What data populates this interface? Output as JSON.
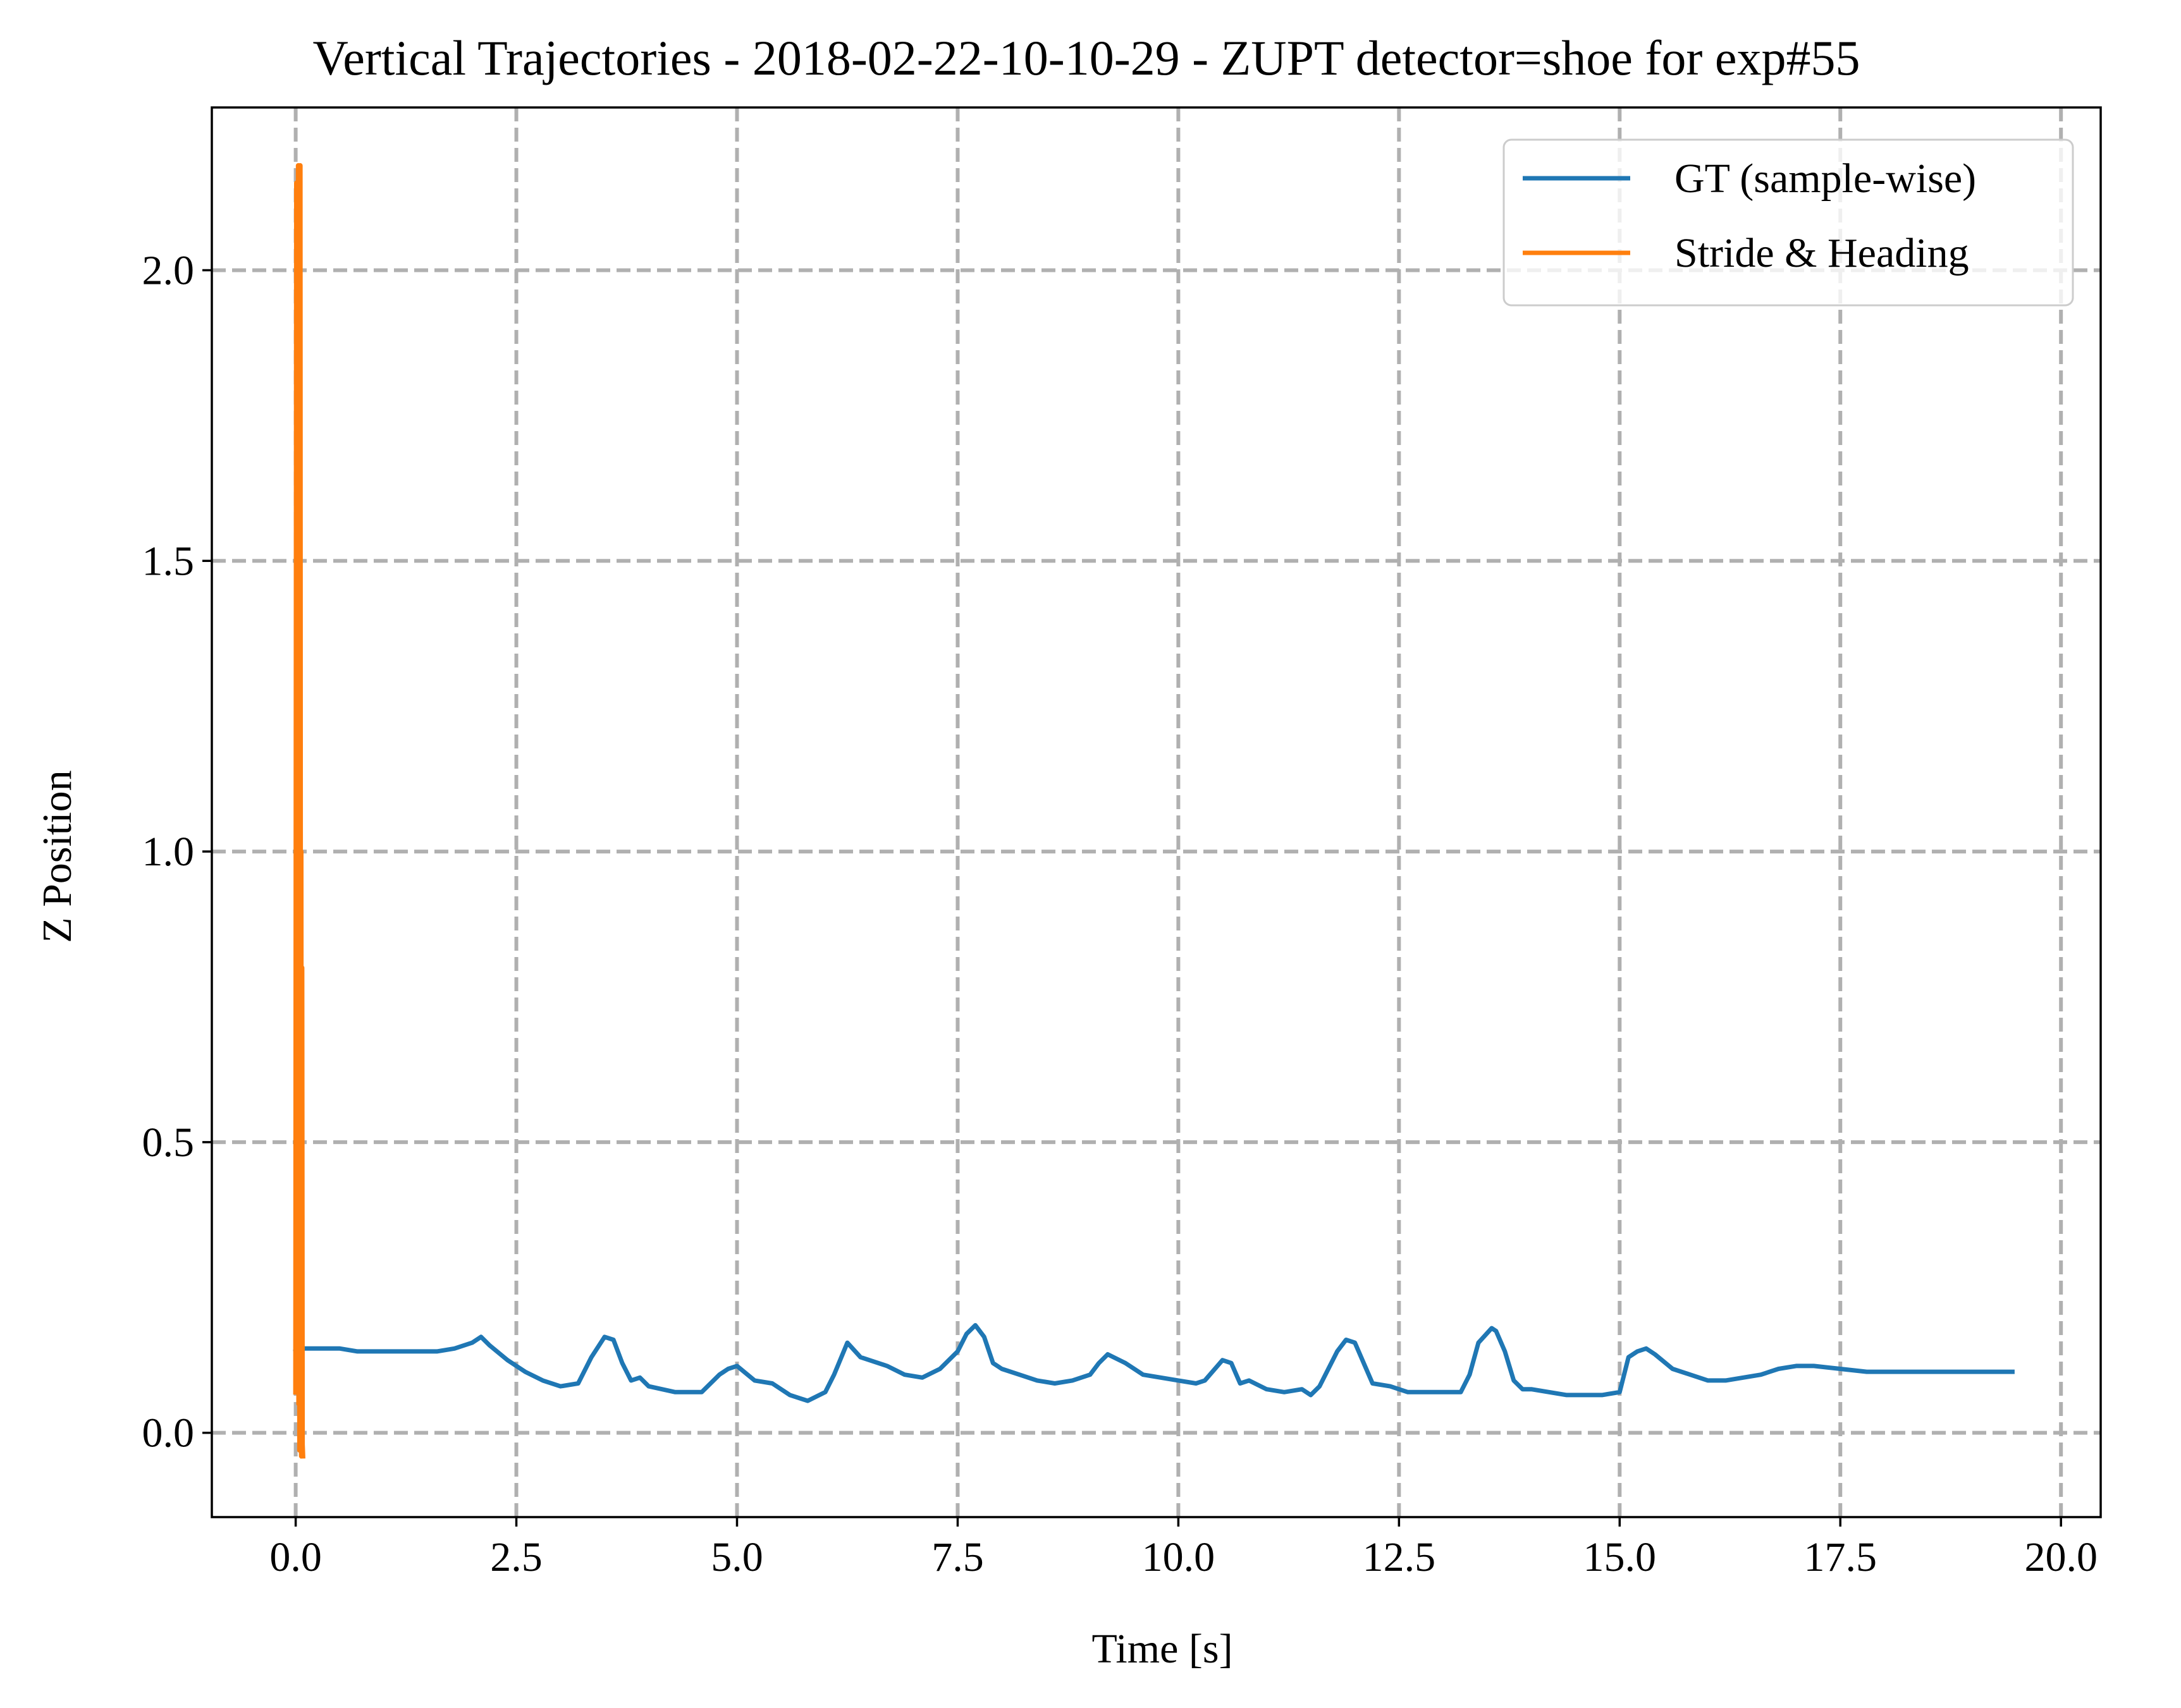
{
  "chart_data": {
    "type": "line",
    "title": "Vertical Trajectories - 2018-02-22-10-10-29 - ZUPT detector=shoe for exp#55",
    "xlabel": "Time [s]",
    "ylabel": "Z Position",
    "xlim": [
      -0.95,
      20.45
    ],
    "ylim": [
      -0.145,
      2.28
    ],
    "xticks": [
      0.0,
      2.5,
      5.0,
      7.5,
      10.0,
      12.5,
      15.0,
      17.5,
      20.0
    ],
    "xtick_labels": [
      "0.0",
      "2.5",
      "5.0",
      "7.5",
      "10.0",
      "12.5",
      "15.0",
      "17.5",
      "20.0"
    ],
    "yticks": [
      0.0,
      0.5,
      1.0,
      1.5,
      2.0
    ],
    "ytick_labels": [
      "0.0",
      "0.5",
      "1.0",
      "1.5",
      "2.0"
    ],
    "grid": true,
    "legend_position": "top-right",
    "series": [
      {
        "name": "GT (sample-wise)",
        "color": "#1f77b4",
        "x": [
          0.0,
          0.1,
          0.3,
          0.5,
          0.7,
          1.0,
          1.3,
          1.6,
          1.8,
          2.0,
          2.1,
          2.2,
          2.4,
          2.6,
          2.8,
          3.0,
          3.2,
          3.35,
          3.5,
          3.6,
          3.7,
          3.8,
          3.9,
          4.0,
          4.3,
          4.6,
          4.8,
          4.9,
          5.0,
          5.2,
          5.4,
          5.6,
          5.8,
          6.0,
          6.1,
          6.25,
          6.4,
          6.5,
          6.7,
          6.9,
          7.1,
          7.3,
          7.5,
          7.6,
          7.7,
          7.8,
          7.9,
          8.0,
          8.2,
          8.4,
          8.6,
          8.8,
          9.0,
          9.1,
          9.2,
          9.4,
          9.6,
          9.8,
          10.0,
          10.2,
          10.3,
          10.5,
          10.6,
          10.7,
          10.8,
          11.0,
          11.2,
          11.4,
          11.5,
          11.6,
          11.8,
          11.9,
          12.0,
          12.1,
          12.2,
          12.4,
          12.6,
          12.8,
          13.0,
          13.2,
          13.3,
          13.4,
          13.55,
          13.6,
          13.7,
          13.8,
          13.9,
          14.0,
          14.2,
          14.4,
          14.6,
          14.8,
          15.0,
          15.1,
          15.2,
          15.3,
          15.4,
          15.6,
          15.8,
          16.0,
          16.2,
          16.4,
          16.6,
          16.8,
          17.0,
          17.2,
          17.5,
          17.8,
          18.0,
          18.5,
          19.0,
          19.45
        ],
        "values": [
          0.14,
          0.145,
          0.145,
          0.145,
          0.14,
          0.14,
          0.14,
          0.14,
          0.145,
          0.155,
          0.165,
          0.15,
          0.125,
          0.105,
          0.09,
          0.08,
          0.085,
          0.13,
          0.165,
          0.16,
          0.12,
          0.09,
          0.095,
          0.08,
          0.07,
          0.07,
          0.1,
          0.11,
          0.115,
          0.09,
          0.085,
          0.065,
          0.055,
          0.07,
          0.1,
          0.155,
          0.13,
          0.125,
          0.115,
          0.1,
          0.095,
          0.11,
          0.14,
          0.17,
          0.185,
          0.165,
          0.12,
          0.11,
          0.1,
          0.09,
          0.085,
          0.09,
          0.1,
          0.12,
          0.135,
          0.12,
          0.1,
          0.095,
          0.09,
          0.085,
          0.09,
          0.125,
          0.12,
          0.085,
          0.09,
          0.075,
          0.07,
          0.075,
          0.065,
          0.08,
          0.14,
          0.16,
          0.155,
          0.12,
          0.085,
          0.08,
          0.07,
          0.07,
          0.07,
          0.07,
          0.1,
          0.155,
          0.18,
          0.175,
          0.14,
          0.09,
          0.075,
          0.075,
          0.07,
          0.065,
          0.065,
          0.065,
          0.07,
          0.13,
          0.14,
          0.145,
          0.135,
          0.11,
          0.1,
          0.09,
          0.09,
          0.095,
          0.1,
          0.11,
          0.115,
          0.115,
          0.11,
          0.105,
          0.105,
          0.105,
          0.105,
          0.105
        ]
      },
      {
        "name": "Stride & Heading",
        "color": "#ff7f0e",
        "x": [
          0.0,
          0.005,
          0.01,
          0.015,
          0.02,
          0.025,
          0.03,
          0.035,
          0.04,
          0.045,
          0.05,
          0.055,
          0.06,
          0.065,
          0.07,
          0.075,
          0.08
        ],
        "values": [
          0.07,
          1.2,
          2.15,
          0.5,
          1.8,
          0.2,
          2.18,
          0.05,
          1.5,
          -0.03,
          2.18,
          0.4,
          1.0,
          -0.04,
          0.8,
          -0.02,
          -0.04
        ]
      }
    ]
  }
}
